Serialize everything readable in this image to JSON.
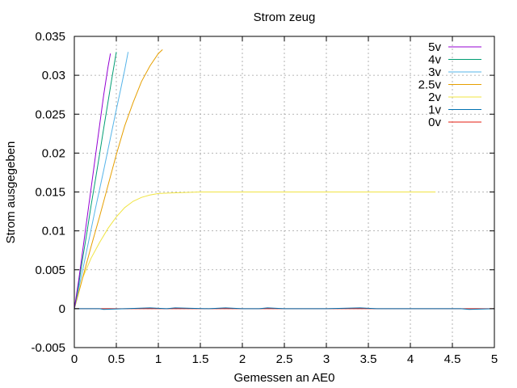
{
  "chart_data": {
    "type": "line",
    "title": "Strom zeug",
    "xlabel": "Gemessen an AE0",
    "ylabel": "Strom ausgegeben",
    "xlim": [
      0,
      5
    ],
    "ylim": [
      -0.005,
      0.035
    ],
    "xticks": [
      0,
      0.5,
      1,
      1.5,
      2,
      2.5,
      3,
      3.5,
      4,
      4.5,
      5
    ],
    "yticks": [
      -0.005,
      0,
      0.005,
      0.01,
      0.015,
      0.02,
      0.025,
      0.03,
      0.035
    ],
    "xtick_labels": [
      "0",
      "0.5",
      "1",
      "1.5",
      "2",
      "2.5",
      "3",
      "3.5",
      "4",
      "4.5",
      "5"
    ],
    "ytick_labels": [
      "-0.005",
      "0",
      "0.005",
      "0.01",
      "0.015",
      "0.02",
      "0.025",
      "0.03",
      "0.035"
    ],
    "grid": true,
    "legend_position": "top-right",
    "series": [
      {
        "name": "5v",
        "color": "#9400d3",
        "x": [
          0,
          0.05,
          0.1,
          0.15,
          0.2,
          0.25,
          0.3,
          0.35,
          0.4,
          0.43
        ],
        "y": [
          0,
          0.0035,
          0.0075,
          0.0115,
          0.0155,
          0.0195,
          0.0235,
          0.0275,
          0.031,
          0.0328
        ]
      },
      {
        "name": "4v",
        "color": "#009e73",
        "x": [
          0,
          0.05,
          0.1,
          0.15,
          0.2,
          0.25,
          0.3,
          0.35,
          0.4,
          0.45,
          0.5
        ],
        "y": [
          0,
          0.003,
          0.0065,
          0.0098,
          0.0133,
          0.0165,
          0.0198,
          0.0232,
          0.0265,
          0.0298,
          0.033
        ]
      },
      {
        "name": "3v",
        "color": "#56b4e9",
        "x": [
          0,
          0.05,
          0.1,
          0.15,
          0.2,
          0.25,
          0.3,
          0.35,
          0.4,
          0.45,
          0.5,
          0.55,
          0.6,
          0.64
        ],
        "y": [
          0,
          0.0025,
          0.005,
          0.0076,
          0.0102,
          0.0128,
          0.0153,
          0.0178,
          0.0204,
          0.023,
          0.0256,
          0.0281,
          0.0307,
          0.033
        ]
      },
      {
        "name": "2.5v",
        "color": "#e69f00",
        "x": [
          0,
          0.1,
          0.2,
          0.3,
          0.4,
          0.5,
          0.6,
          0.7,
          0.8,
          0.9,
          1.0,
          1.05
        ],
        "y": [
          0,
          0.004,
          0.008,
          0.0118,
          0.0158,
          0.0198,
          0.0235,
          0.0265,
          0.0292,
          0.0312,
          0.0328,
          0.0333
        ]
      },
      {
        "name": "2v",
        "color": "#f0e442",
        "x": [
          0,
          0.1,
          0.2,
          0.3,
          0.4,
          0.5,
          0.6,
          0.7,
          0.8,
          0.9,
          1.0,
          1.2,
          1.5,
          2.0,
          2.5,
          3.0,
          3.5,
          4.0,
          4.3
        ],
        "y": [
          0,
          0.004,
          0.0065,
          0.0085,
          0.0103,
          0.0118,
          0.013,
          0.0138,
          0.0143,
          0.0146,
          0.0148,
          0.0149,
          0.015,
          0.015,
          0.015,
          0.015,
          0.015,
          0.015,
          0.015
        ]
      },
      {
        "name": "1v",
        "color": "#0072b2",
        "x": [
          0,
          0.3,
          0.35,
          0.6,
          0.9,
          1.1,
          1.2,
          1.6,
          1.8,
          2.0,
          2.2,
          2.3,
          2.5,
          3.0,
          3.4,
          3.6,
          4.0,
          4.6,
          4.7,
          5.0
        ],
        "y": [
          0,
          0,
          -0.0001,
          0,
          0.0001,
          0,
          0.0001,
          0,
          0.0001,
          0,
          0,
          0.0001,
          0,
          0,
          0.0001,
          0,
          0,
          0,
          -0.0001,
          0
        ]
      },
      {
        "name": "0v",
        "color": "#e51e10",
        "x": [
          0,
          1,
          2,
          3,
          4,
          5
        ],
        "y": [
          0,
          0,
          0,
          0,
          0,
          0
        ]
      }
    ]
  }
}
